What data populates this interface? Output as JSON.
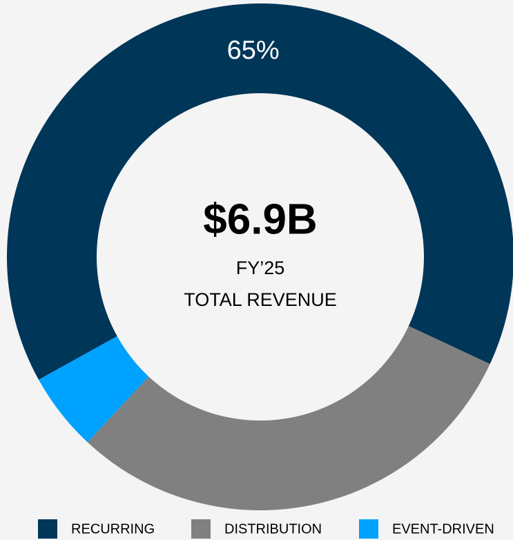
{
  "chart_data": {
    "type": "donut",
    "categories": [
      "RECURRING",
      "DISTRIBUTION",
      "EVENT-DRIVEN"
    ],
    "values": [
      65,
      30,
      5
    ],
    "value_labels": [
      "65%",
      null,
      null
    ],
    "colors": [
      "#003658",
      "#808080",
      "#00a2ff"
    ],
    "center_value": "$6.9B",
    "center_lines": [
      "FY’25",
      "TOTAL REVENUE"
    ],
    "legend": "bottom"
  }
}
